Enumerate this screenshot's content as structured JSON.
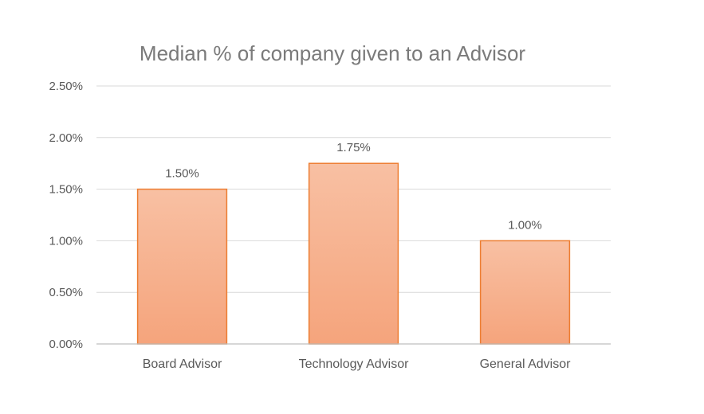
{
  "chart_data": {
    "type": "bar",
    "title": "Median % of company given to an Advisor",
    "categories": [
      "Board Advisor",
      "Technology Advisor",
      "General Advisor"
    ],
    "values": [
      1.5,
      1.75,
      1.0
    ],
    "data_labels": [
      "1.50%",
      "1.75%",
      "1.00%"
    ],
    "xlabel": "",
    "ylabel": "",
    "ylim": [
      0,
      2.5
    ],
    "yticks": [
      0,
      0.5,
      1.0,
      1.5,
      2.0,
      2.5
    ],
    "ytick_labels": [
      "0.00%",
      "0.50%",
      "1.00%",
      "1.50%",
      "2.00%",
      "2.50%"
    ],
    "grid": true,
    "legend": "none",
    "colors": {
      "bar_fill_top": "#f8c0a3",
      "bar_fill_bottom": "#f5a47c",
      "bar_stroke": "#ed7d31",
      "gridline": "#d9d9d9",
      "axis_line": "#bfbfbf",
      "title": "#7a7a7a",
      "label": "#595959"
    }
  }
}
